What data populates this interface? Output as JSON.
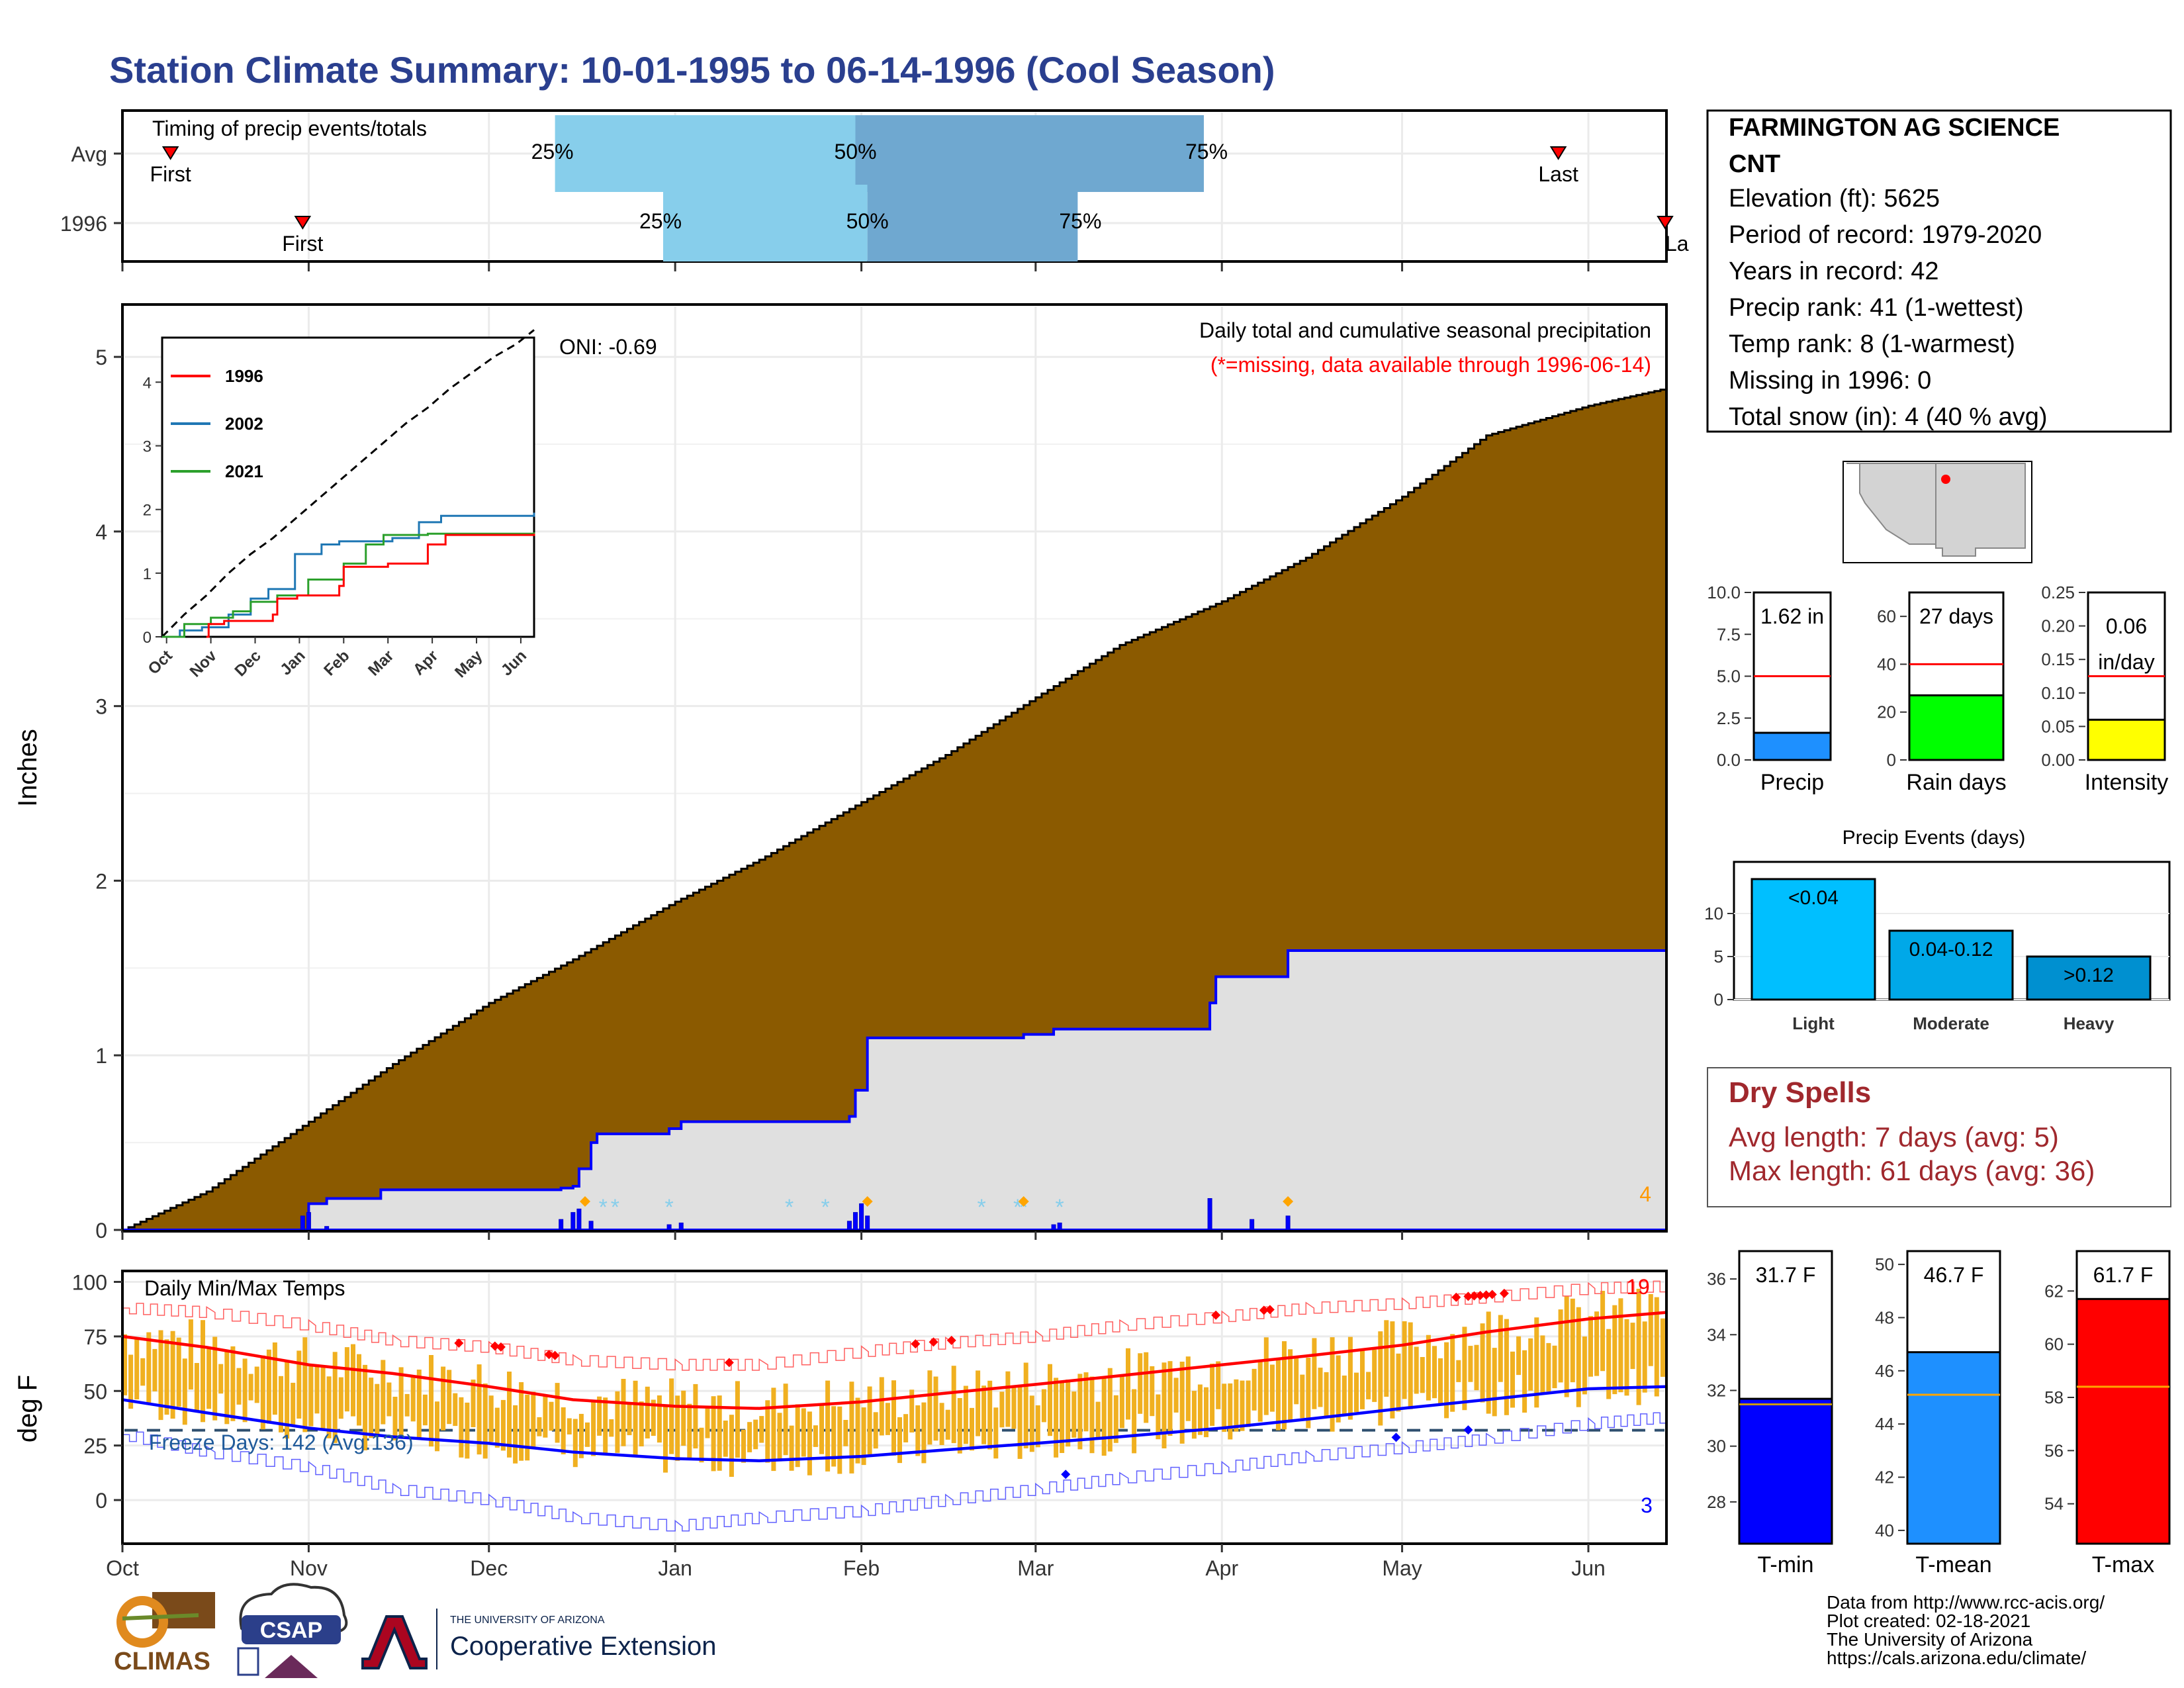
{
  "title": "Station Climate Summary: 10-01-1995 to 06-14-1996 (Cool Season)",
  "colors": {
    "title": "#2a3f8f",
    "brown": "#8b5a00",
    "light_gray": "#e0e0e0",
    "blue_line": "#0000ff",
    "timing_light": "#87ceeb",
    "timing_dark": "#6fa8d0",
    "red": "#ff0000",
    "orange_bar": "#f0b020",
    "dry_spells": "#a0282d",
    "precip_bar": "#1e90ff",
    "rain_bar": "#00ff00",
    "intensity_bar": "#ffff00",
    "events_light": "#00bfff",
    "events_moderate": "#00a8e8",
    "events_heavy": "#0090d0"
  },
  "timing": {
    "title": "Timing of precip events/totals",
    "rows": [
      {
        "label": "Avg",
        "first_label": "First",
        "last_label": "Last",
        "first": "1995-10-09",
        "last": "1996-05-27",
        "p25": "1995-12-12",
        "p50": "1996-01-31",
        "p75": "1996-03-29",
        "p25_label": "25%",
        "p50_label": "50%",
        "p75_label": "75%"
      },
      {
        "label": "1996",
        "first_label": "First",
        "last_label": "La",
        "first": "1995-10-31",
        "last": "1996-06-14",
        "p25": "1995-12-30",
        "p50": "1996-02-02",
        "p75": "1996-03-08",
        "p25_label": "25%",
        "p50_label": "50%",
        "p75_label": "75%"
      }
    ]
  },
  "precip_panel": {
    "title": "Daily total and cumulative seasonal precipitation",
    "subtitle": "(*=missing, data available through 1996-06-14)",
    "ylabel": "Inches",
    "oni": "ONI: -0.69",
    "corner_count": "4",
    "y_ticks": [
      "0",
      "1",
      "2",
      "3",
      "4",
      "5"
    ],
    "ylim": [
      0,
      5.3
    ],
    "avg_cumulative": [
      [
        "1995-10-01",
        0
      ],
      [
        "1995-10-15",
        0.22
      ],
      [
        "1995-11-01",
        0.62
      ],
      [
        "1995-11-15",
        0.95
      ],
      [
        "1995-12-01",
        1.3
      ],
      [
        "1995-12-15",
        1.55
      ],
      [
        "1996-01-01",
        1.88
      ],
      [
        "1996-01-15",
        2.12
      ],
      [
        "1996-02-01",
        2.45
      ],
      [
        "1996-02-15",
        2.72
      ],
      [
        "1996-03-01",
        3.05
      ],
      [
        "1996-03-15",
        3.35
      ],
      [
        "1996-04-01",
        3.6
      ],
      [
        "1996-04-15",
        3.85
      ],
      [
        "1996-05-01",
        4.2
      ],
      [
        "1996-05-15",
        4.55
      ],
      [
        "1996-06-01",
        4.72
      ],
      [
        "1996-06-14",
        4.82
      ]
    ],
    "cumulative_1996": [
      [
        "1995-10-01",
        0
      ],
      [
        "1995-10-31",
        0.0
      ],
      [
        "1995-11-01",
        0.15
      ],
      [
        "1995-11-04",
        0.18
      ],
      [
        "1995-11-13",
        0.23
      ],
      [
        "1995-12-13",
        0.24
      ],
      [
        "1995-12-15",
        0.25
      ],
      [
        "1995-12-16",
        0.35
      ],
      [
        "1995-12-18",
        0.5
      ],
      [
        "1995-12-19",
        0.55
      ],
      [
        "1995-12-31",
        0.58
      ],
      [
        "1996-01-02",
        0.62
      ],
      [
        "1996-01-30",
        0.65
      ],
      [
        "1996-01-31",
        0.8
      ],
      [
        "1996-02-02",
        1.1
      ],
      [
        "1996-02-22",
        1.1
      ],
      [
        "1996-02-28",
        1.12
      ],
      [
        "1996-03-04",
        1.15
      ],
      [
        "1996-03-30",
        1.3
      ],
      [
        "1996-03-31",
        1.45
      ],
      [
        "1996-04-12",
        1.6
      ],
      [
        "1996-06-14",
        1.62
      ]
    ],
    "daily_bars": [
      [
        "1995-10-31",
        0.08
      ],
      [
        "1995-11-01",
        0.1
      ],
      [
        "1995-11-04",
        0.02
      ],
      [
        "1995-12-13",
        0.06
      ],
      [
        "1995-12-15",
        0.1
      ],
      [
        "1995-12-16",
        0.12
      ],
      [
        "1995-12-18",
        0.05
      ],
      [
        "1995-12-31",
        0.03
      ],
      [
        "1996-01-02",
        0.04
      ],
      [
        "1996-01-30",
        0.05
      ],
      [
        "1996-01-31",
        0.1
      ],
      [
        "1996-02-01",
        0.15
      ],
      [
        "1996-02-02",
        0.08
      ],
      [
        "1996-03-04",
        0.03
      ],
      [
        "1996-03-05",
        0.04
      ],
      [
        "1996-03-30",
        0.18
      ],
      [
        "1996-04-06",
        0.06
      ],
      [
        "1996-04-12",
        0.08
      ]
    ],
    "missing_marks": [
      "1995-12-20",
      "1995-12-22",
      "1995-12-31",
      "1996-01-20",
      "1996-01-26",
      "1996-02-21",
      "1996-02-27",
      "1996-02-28",
      "1996-03-05"
    ],
    "snow_marks": [
      "1995-12-17",
      "1996-02-02",
      "1996-02-28",
      "1996-04-12"
    ]
  },
  "inset": {
    "legend": [
      "1996",
      "2002",
      "2021"
    ],
    "legend_colors": [
      "#ff0000",
      "#1f77b4",
      "#2ca02c"
    ],
    "y_ticks": [
      "0",
      "1",
      "2",
      "3",
      "4"
    ],
    "x_ticks": [
      "Oct",
      "Nov",
      "Dec",
      "Jan",
      "Feb",
      "Mar",
      "Apr",
      "May",
      "Jun"
    ],
    "ylim": [
      0,
      4.7
    ],
    "avg": [
      [
        0,
        0
      ],
      [
        0.5,
        0.35
      ],
      [
        1,
        0.65
      ],
      [
        1.5,
        1.0
      ],
      [
        2,
        1.3
      ],
      [
        2.5,
        1.55
      ],
      [
        3,
        1.85
      ],
      [
        3.5,
        2.15
      ],
      [
        4,
        2.45
      ],
      [
        4.5,
        2.75
      ],
      [
        5,
        3.05
      ],
      [
        5.5,
        3.35
      ],
      [
        6,
        3.6
      ],
      [
        6.5,
        3.9
      ],
      [
        7,
        4.15
      ],
      [
        7.5,
        4.4
      ],
      [
        8,
        4.6
      ],
      [
        8.4,
        4.82
      ]
    ],
    "s1996": [
      [
        1.0,
        0
      ],
      [
        1.05,
        0.2
      ],
      [
        1.4,
        0.25
      ],
      [
        2.5,
        0.35
      ],
      [
        2.6,
        0.6
      ],
      [
        3.05,
        0.65
      ],
      [
        4.0,
        0.8
      ],
      [
        4.1,
        1.1
      ],
      [
        5.1,
        1.15
      ],
      [
        6.0,
        1.45
      ],
      [
        6.4,
        1.6
      ],
      [
        8.4,
        1.62
      ]
    ],
    "s2002": [
      [
        0,
        0
      ],
      [
        0.4,
        0.1
      ],
      [
        0.9,
        0.15
      ],
      [
        1.5,
        0.35
      ],
      [
        2.0,
        0.6
      ],
      [
        2.4,
        0.75
      ],
      [
        3.0,
        1.3
      ],
      [
        3.6,
        1.45
      ],
      [
        4.0,
        1.5
      ],
      [
        4.4,
        1.5
      ],
      [
        5.2,
        1.55
      ],
      [
        5.8,
        1.8
      ],
      [
        6.3,
        1.9
      ],
      [
        8.4,
        1.95
      ]
    ],
    "s2021": [
      [
        0,
        0
      ],
      [
        0.5,
        0.2
      ],
      [
        1.1,
        0.3
      ],
      [
        1.6,
        0.4
      ],
      [
        2.0,
        0.55
      ],
      [
        2.6,
        0.65
      ],
      [
        3.3,
        0.9
      ],
      [
        4.1,
        1.15
      ],
      [
        4.6,
        1.45
      ],
      [
        5.0,
        1.6
      ],
      [
        6.0,
        1.62
      ],
      [
        8.4,
        1.64
      ]
    ]
  },
  "temp_panel": {
    "title": "Daily Min/Max Temps",
    "ylabel": "deg F",
    "freeze_label": "Freeze Days: 142 (Avg:136)",
    "max_count": "19",
    "min_count": "3",
    "y_ticks": [
      "0",
      "25",
      "50",
      "75",
      "100"
    ],
    "ylim": [
      -20,
      105
    ],
    "freeze_line": 32,
    "avg_max": [
      [
        "1995-10-01",
        75
      ],
      [
        "1995-10-15",
        70
      ],
      [
        "1995-11-01",
        62
      ],
      [
        "1995-11-15",
        58
      ],
      [
        "1995-12-01",
        52
      ],
      [
        "1995-12-15",
        46
      ],
      [
        "1996-01-01",
        43
      ],
      [
        "1996-01-15",
        42
      ],
      [
        "1996-02-01",
        45
      ],
      [
        "1996-02-15",
        49
      ],
      [
        "1996-03-01",
        53
      ],
      [
        "1996-03-15",
        57
      ],
      [
        "1996-04-01",
        62
      ],
      [
        "1996-04-15",
        66
      ],
      [
        "1996-05-01",
        71
      ],
      [
        "1996-05-15",
        77
      ],
      [
        "1996-06-01",
        83
      ],
      [
        "1996-06-14",
        86
      ]
    ],
    "avg_min": [
      [
        "1995-10-01",
        46
      ],
      [
        "1995-10-15",
        40
      ],
      [
        "1995-11-01",
        33
      ],
      [
        "1995-11-15",
        29
      ],
      [
        "1995-12-01",
        26
      ],
      [
        "1995-12-15",
        22
      ],
      [
        "1996-01-01",
        19
      ],
      [
        "1996-01-15",
        18
      ],
      [
        "1996-02-01",
        20
      ],
      [
        "1996-02-15",
        23
      ],
      [
        "1996-03-01",
        26
      ],
      [
        "1996-03-15",
        29
      ],
      [
        "1996-04-01",
        33
      ],
      [
        "1996-04-15",
        37
      ],
      [
        "1996-05-01",
        42
      ],
      [
        "1996-05-15",
        46
      ],
      [
        "1996-06-01",
        51
      ],
      [
        "1996-06-14",
        52
      ]
    ],
    "rec_high": [
      [
        "1995-10-01",
        88
      ],
      [
        "1995-10-15",
        86
      ],
      [
        "1995-11-01",
        80
      ],
      [
        "1995-11-15",
        73
      ],
      [
        "1995-12-01",
        70
      ],
      [
        "1995-12-15",
        64
      ],
      [
        "1996-01-01",
        62
      ],
      [
        "1996-01-15",
        62
      ],
      [
        "1996-02-01",
        68
      ],
      [
        "1996-02-15",
        72
      ],
      [
        "1996-03-01",
        75
      ],
      [
        "1996-03-15",
        80
      ],
      [
        "1996-04-01",
        84
      ],
      [
        "1996-04-15",
        88
      ],
      [
        "1996-05-01",
        90
      ],
      [
        "1996-05-15",
        93
      ],
      [
        "1996-06-01",
        97
      ],
      [
        "1996-06-14",
        98
      ]
    ],
    "rec_low": [
      [
        "1995-10-01",
        30
      ],
      [
        "1995-10-15",
        22
      ],
      [
        "1995-11-01",
        15
      ],
      [
        "1995-11-15",
        5
      ],
      [
        "1995-12-01",
        0
      ],
      [
        "1995-12-15",
        -8
      ],
      [
        "1996-01-01",
        -12
      ],
      [
        "1996-01-15",
        -8
      ],
      [
        "1996-02-01",
        -5
      ],
      [
        "1996-02-15",
        0
      ],
      [
        "1996-03-01",
        5
      ],
      [
        "1996-03-15",
        10
      ],
      [
        "1996-04-01",
        15
      ],
      [
        "1996-04-15",
        20
      ],
      [
        "1996-05-01",
        24
      ],
      [
        "1996-05-15",
        28
      ],
      [
        "1996-06-01",
        35
      ],
      [
        "1996-06-14",
        38
      ]
    ],
    "record_high_days": [
      "1995-11-26",
      "1995-12-02",
      "1995-12-03",
      "1995-12-11",
      "1995-12-12",
      "1996-01-10",
      "1996-02-10",
      "1996-02-13",
      "1996-02-16",
      "1996-03-31",
      "1996-04-08",
      "1996-04-09",
      "1996-05-10",
      "1996-05-12",
      "1996-05-13",
      "1996-05-14",
      "1996-05-15",
      "1996-05-16",
      "1996-05-18"
    ],
    "record_low_days": [
      "1996-03-06",
      "1996-04-30",
      "1996-05-12"
    ]
  },
  "x_axis_months": [
    "Oct",
    "Nov",
    "Dec",
    "Jan",
    "Feb",
    "Mar",
    "Apr",
    "May",
    "Jun"
  ],
  "station": {
    "name_line1": "FARMINGTON AG SCIENCE",
    "name_line2": "CNT",
    "lines": [
      "Elevation (ft): 5625",
      "Period of record: 1979-2020",
      "Years in record: 42",
      "Precip rank: 41 (1-wettest)",
      "Temp rank: 8 (1-warmest)",
      "Missing in 1996: 0",
      "Total snow (in): 4 (40 % avg)"
    ]
  },
  "summary_bars": {
    "precip": {
      "label": "Precip",
      "value": 1.62,
      "text": "1.62 in",
      "avg": 5.0,
      "ylim": [
        0,
        10
      ],
      "ticks": [
        "0.0",
        "2.5",
        "5.0",
        "7.5",
        "10.0"
      ]
    },
    "rain_days": {
      "label": "Rain days",
      "value": 27,
      "text": "27 days",
      "avg": 40,
      "ylim": [
        0,
        70
      ],
      "ticks": [
        "0",
        "20",
        "40",
        "60"
      ]
    },
    "intensity": {
      "label": "Intensity",
      "value": 0.06,
      "text": "0.06",
      "text2": "in/day",
      "avg": 0.125,
      "ylim": [
        0,
        0.25
      ],
      "ticks": [
        "0.00",
        "0.05",
        "0.10",
        "0.15",
        "0.20",
        "0.25"
      ]
    }
  },
  "precip_events": {
    "title": "Precip Events (days)",
    "categories": [
      "Light",
      "Moderate",
      "Heavy"
    ],
    "bar_labels": [
      "<0.04",
      "0.04-0.12",
      ">0.12"
    ],
    "values": [
      14,
      8,
      5
    ],
    "ylim": [
      0,
      16
    ],
    "ticks": [
      "0",
      "5",
      "10"
    ]
  },
  "dry_spells": {
    "title": "Dry Spells",
    "avg_line": "Avg length: 7 days (avg: 5)",
    "max_line": "Max length: 61 days (avg: 36)"
  },
  "temp_bars": {
    "tmin": {
      "label": "T-min",
      "value": 31.7,
      "text": "31.7 F",
      "avg": 31.5,
      "ylim": [
        26.5,
        37
      ],
      "ticks": [
        "28",
        "30",
        "32",
        "34",
        "36"
      ]
    },
    "tmean": {
      "label": "T-mean",
      "value": 46.7,
      "text": "46.7 F",
      "avg": 45.1,
      "ylim": [
        39.5,
        50.5
      ],
      "ticks": [
        "40",
        "42",
        "44",
        "46",
        "48",
        "50"
      ]
    },
    "tmax": {
      "label": "T-max",
      "value": 61.7,
      "text": "61.7 F",
      "avg": 58.4,
      "ylim": [
        52.5,
        63.5
      ],
      "ticks": [
        "54",
        "56",
        "58",
        "60",
        "62"
      ]
    }
  },
  "footer": {
    "lines": [
      "Data from http://www.rcc-acis.org/",
      "Plot created: 02-18-2021",
      "The University of Arizona",
      "https://cals.arizona.edu/climate/"
    ],
    "climas": "CLIMAS",
    "csap": "CSAP",
    "ua_small": "THE UNIVERSITY OF ARIZONA",
    "coop": "Cooperative Extension"
  }
}
